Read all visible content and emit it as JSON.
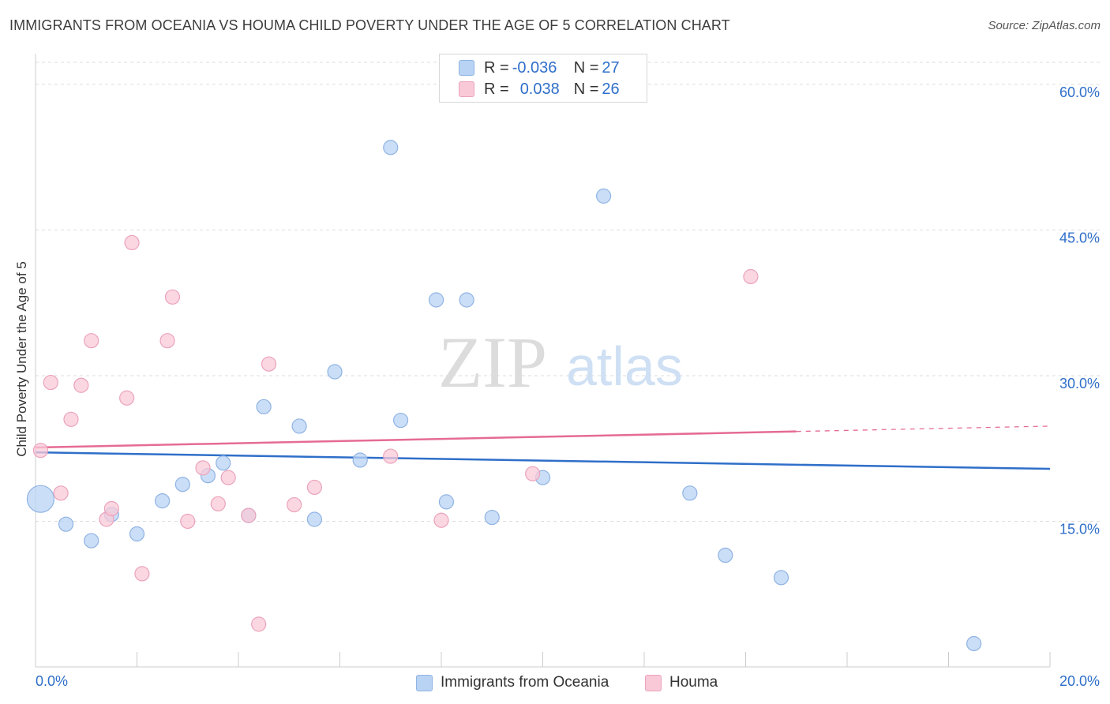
{
  "title": "IMMIGRANTS FROM OCEANIA VS HOUMA CHILD POVERTY UNDER THE AGE OF 5 CORRELATION CHART",
  "source": "Source: ZipAtlas.com",
  "watermark": {
    "zip": "ZIP",
    "atlas": "atlas"
  },
  "legend": {
    "series1": {
      "r_label": "R = ",
      "r_value": "-0.036",
      "n_label": "N = ",
      "n_value": "27"
    },
    "series2": {
      "r_label": "R = ",
      "r_value": "0.038",
      "n_label": "N = ",
      "n_value": "26"
    }
  },
  "colors": {
    "blue_fill": "#b9d3f4",
    "blue_stroke": "#8fb3e3",
    "blue_line": "#2f6fc9",
    "pink_fill": "#f9c9d8",
    "pink_stroke": "#eba3bb",
    "pink_line": "#e56b95",
    "grid": "#dddddd",
    "axis_text": "#2f6fc9"
  },
  "chart_data": {
    "type": "scatter",
    "title": "IMMIGRANTS FROM OCEANIA VS HOUMA CHILD POVERTY UNDER THE AGE OF 5 CORRELATION CHART",
    "xlabel": "",
    "ylabel": "Child Poverty Under the Age of 5",
    "xlim": [
      0,
      20
    ],
    "ylim": [
      0,
      63
    ],
    "x_tick_labels": [
      "0.0%",
      "20.0%"
    ],
    "y_ticks": [
      15,
      30,
      45,
      60
    ],
    "y_tick_labels": [
      "15.0%",
      "30.0%",
      "45.0%",
      "60.0%"
    ],
    "grid": true,
    "legend_position": "top-center",
    "series": [
      {
        "name": "Immigrants from Oceania",
        "color": "#2f6fc9",
        "points": [
          {
            "x": 0.1,
            "y": 17.3,
            "size": 17
          },
          {
            "x": 0.6,
            "y": 14.7
          },
          {
            "x": 1.1,
            "y": 13.0
          },
          {
            "x": 1.5,
            "y": 15.7
          },
          {
            "x": 2.0,
            "y": 13.7
          },
          {
            "x": 2.5,
            "y": 17.1
          },
          {
            "x": 2.9,
            "y": 18.8
          },
          {
            "x": 3.4,
            "y": 19.7
          },
          {
            "x": 3.7,
            "y": 21.0
          },
          {
            "x": 4.2,
            "y": 15.6
          },
          {
            "x": 4.5,
            "y": 26.8
          },
          {
            "x": 5.2,
            "y": 24.8
          },
          {
            "x": 5.5,
            "y": 15.2
          },
          {
            "x": 5.9,
            "y": 30.4
          },
          {
            "x": 6.4,
            "y": 21.3
          },
          {
            "x": 7.0,
            "y": 53.5
          },
          {
            "x": 7.2,
            "y": 25.4
          },
          {
            "x": 7.9,
            "y": 37.8
          },
          {
            "x": 8.1,
            "y": 17.0
          },
          {
            "x": 8.5,
            "y": 37.8
          },
          {
            "x": 9.0,
            "y": 15.4
          },
          {
            "x": 10.0,
            "y": 19.5
          },
          {
            "x": 11.2,
            "y": 48.5
          },
          {
            "x": 12.9,
            "y": 17.9
          },
          {
            "x": 13.6,
            "y": 11.5
          },
          {
            "x": 14.7,
            "y": 9.2
          },
          {
            "x": 18.5,
            "y": 2.4
          }
        ]
      },
      {
        "name": "Houma",
        "color": "#e56b95",
        "points": [
          {
            "x": 0.1,
            "y": 22.3
          },
          {
            "x": 0.3,
            "y": 29.3
          },
          {
            "x": 0.5,
            "y": 17.9
          },
          {
            "x": 0.7,
            "y": 25.5
          },
          {
            "x": 0.9,
            "y": 29.0
          },
          {
            "x": 1.1,
            "y": 33.6
          },
          {
            "x": 1.4,
            "y": 15.2
          },
          {
            "x": 1.5,
            "y": 16.3
          },
          {
            "x": 1.8,
            "y": 27.7
          },
          {
            "x": 1.9,
            "y": 43.7
          },
          {
            "x": 2.1,
            "y": 9.6
          },
          {
            "x": 2.6,
            "y": 33.6
          },
          {
            "x": 2.7,
            "y": 38.1
          },
          {
            "x": 3.0,
            "y": 15.0
          },
          {
            "x": 3.3,
            "y": 20.5
          },
          {
            "x": 3.6,
            "y": 16.8
          },
          {
            "x": 3.8,
            "y": 19.5
          },
          {
            "x": 4.2,
            "y": 15.6
          },
          {
            "x": 4.6,
            "y": 31.2
          },
          {
            "x": 5.1,
            "y": 16.7
          },
          {
            "x": 5.5,
            "y": 18.5
          },
          {
            "x": 4.4,
            "y": 4.4
          },
          {
            "x": 7.0,
            "y": 21.7
          },
          {
            "x": 8.0,
            "y": 15.1
          },
          {
            "x": 9.8,
            "y": 19.9
          },
          {
            "x": 14.1,
            "y": 40.2
          }
        ]
      }
    ],
    "trend_lines": [
      {
        "series": "Immigrants from Oceania",
        "x_start": 0,
        "y_start": 22.1,
        "x_end": 20,
        "y_end": 20.4,
        "dashed_from_x": null
      },
      {
        "series": "Houma",
        "x_start": 0,
        "y_start": 22.6,
        "x_end": 20,
        "y_end": 24.8,
        "dashed_from_x": 15.0
      }
    ]
  }
}
